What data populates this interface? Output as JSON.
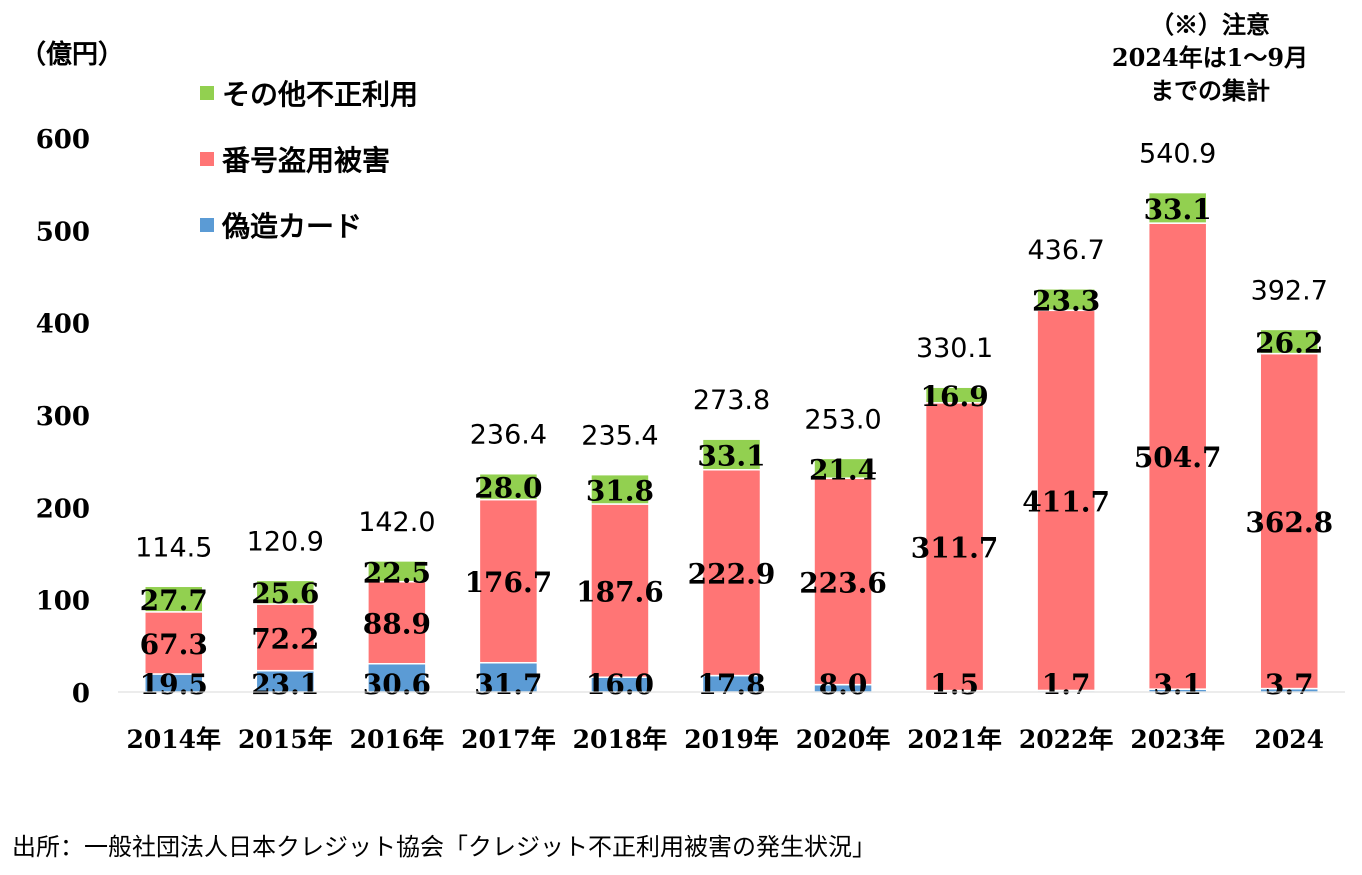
{
  "unit": "（億円）",
  "note": {
    "lines": [
      "（※）注意",
      "2024年は1～9月",
      "までの集計"
    ]
  },
  "source": "出所：一般社団法人日本クレジット協会「クレジット不正利用被害の発生状況」",
  "colors": {
    "other": "#92d050",
    "number_theft": "#ff7575",
    "counterfeit": "#5b9bd5",
    "axis": "#000000"
  },
  "legend": [
    {
      "label": "その他不正利用",
      "color_key": "other"
    },
    {
      "label": "番号盗用被害",
      "color_key": "number_theft"
    },
    {
      "label": "偽造カード",
      "color_key": "counterfeit"
    }
  ],
  "chart_data": {
    "type": "bar",
    "stacked": true,
    "categories": [
      "2014年",
      "2015年",
      "2016年",
      "2017年",
      "2018年",
      "2019年",
      "2020年",
      "2021年",
      "2022年",
      "2023年",
      "2024"
    ],
    "series": [
      {
        "name": "偽造カード",
        "color_key": "counterfeit",
        "values": [
          19.5,
          23.1,
          30.6,
          31.7,
          16.0,
          17.8,
          8.0,
          1.5,
          1.7,
          3.1,
          3.7
        ],
        "labels": [
          "19.5",
          "23.1",
          "30.6",
          "31.7",
          "16.0",
          "17.8",
          "8.0",
          "1.5",
          "1.7",
          "3.1",
          "3.7"
        ]
      },
      {
        "name": "番号盗用被害",
        "color_key": "number_theft",
        "values": [
          67.3,
          72.2,
          88.9,
          176.7,
          187.6,
          222.9,
          223.6,
          311.7,
          411.7,
          504.7,
          362.8
        ],
        "labels": [
          "67.3",
          "72.2",
          "88.9",
          "176.7",
          "187.6",
          "222.9",
          "223.6",
          "311.7",
          "411.7",
          "504.7",
          "362.8"
        ]
      },
      {
        "name": "その他不正利用",
        "color_key": "other",
        "values": [
          27.7,
          25.6,
          22.5,
          28.0,
          31.8,
          33.1,
          21.4,
          16.9,
          23.3,
          33.1,
          26.2
        ],
        "labels": [
          "27.7",
          "25.6",
          "22.5",
          "28.0",
          "31.8",
          "33.1",
          "21.4",
          "16.9",
          "23.3",
          "33.1",
          "26.2"
        ]
      }
    ],
    "totals": [
      114.5,
      120.9,
      142.0,
      236.4,
      235.4,
      273.8,
      253.0,
      330.1,
      436.7,
      540.9,
      392.7
    ],
    "total_labels": [
      "114.5",
      "120.9",
      "142.0",
      "236.4",
      "235.4",
      "273.8",
      "253.0",
      "330.1",
      "436.7",
      "540.9",
      "392.7"
    ],
    "yticks": [
      "0",
      "100",
      "200",
      "300",
      "400",
      "500",
      "600"
    ],
    "ylim": [
      0,
      600
    ],
    "grid": false,
    "legend_position": "top-left"
  }
}
